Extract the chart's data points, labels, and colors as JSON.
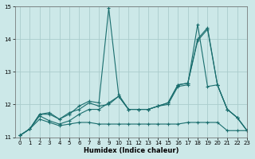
{
  "xlabel": "Humidex (Indice chaleur)",
  "xlim": [
    -0.5,
    23
  ],
  "ylim": [
    11,
    15
  ],
  "yticks": [
    11,
    12,
    13,
    14,
    15
  ],
  "xticks": [
    0,
    1,
    2,
    3,
    4,
    5,
    6,
    7,
    8,
    9,
    10,
    11,
    12,
    13,
    14,
    15,
    16,
    17,
    18,
    19,
    20,
    21,
    22,
    23
  ],
  "bg_color": "#cce8e8",
  "grid_color": "#aacccc",
  "line_color": "#1a6e6e",
  "series": [
    [
      11.05,
      11.25,
      11.7,
      11.75,
      11.55,
      11.7,
      11.95,
      12.1,
      12.05,
      14.95,
      12.3,
      11.85,
      11.85,
      11.85,
      11.95,
      12.0,
      12.55,
      12.6,
      14.45,
      12.55,
      12.6,
      11.85,
      11.6,
      11.2
    ],
    [
      11.05,
      11.25,
      11.7,
      11.7,
      11.55,
      11.75,
      11.85,
      12.05,
      11.95,
      12.0,
      12.25,
      11.85,
      11.85,
      11.85,
      11.95,
      12.05,
      12.6,
      12.65,
      14.0,
      14.35,
      12.6,
      11.85,
      11.6,
      11.2
    ],
    [
      11.05,
      11.25,
      11.65,
      11.5,
      11.4,
      11.5,
      11.7,
      11.85,
      11.85,
      12.05,
      12.25,
      11.85,
      11.85,
      11.85,
      11.95,
      12.05,
      12.6,
      12.65,
      13.95,
      14.3,
      12.6,
      11.85,
      11.6,
      11.2
    ],
    [
      11.05,
      11.25,
      11.55,
      11.45,
      11.35,
      11.4,
      11.45,
      11.45,
      11.4,
      11.4,
      11.4,
      11.4,
      11.4,
      11.4,
      11.4,
      11.4,
      11.4,
      11.45,
      11.45,
      11.45,
      11.45,
      11.2,
      11.2,
      11.2
    ]
  ]
}
